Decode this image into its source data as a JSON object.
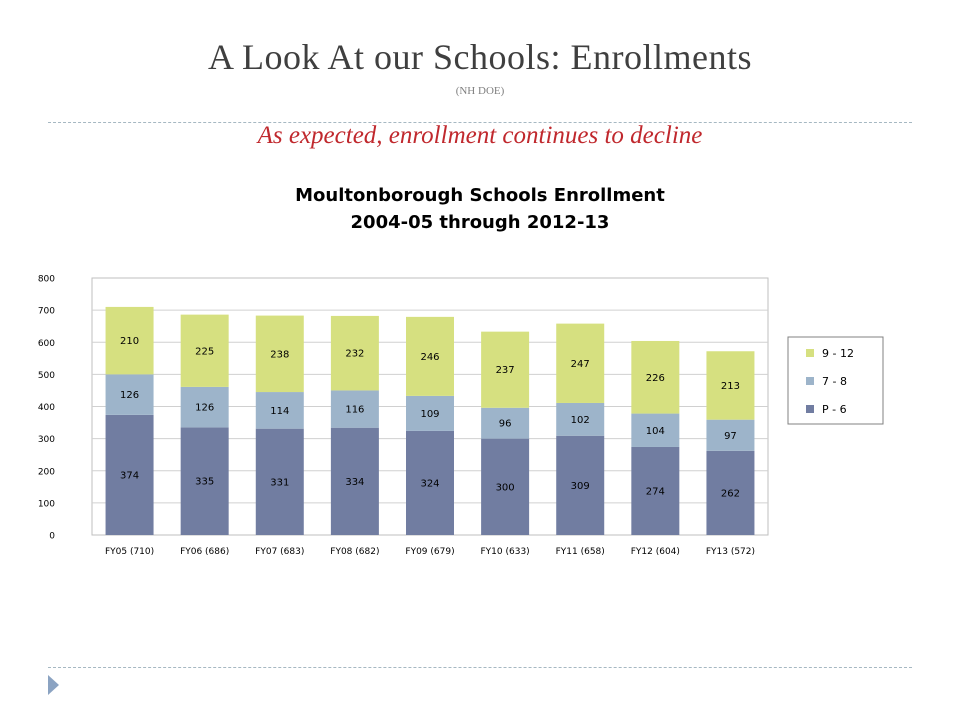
{
  "slide": {
    "title": "A Look At our Schools: Enrollments",
    "source": "(NH DOE)",
    "subtitle": "As expected, enrollment continues to decline"
  },
  "colors": {
    "title": "#3f3f3f",
    "subtitle": "#c0282d",
    "rule": "#a6b8c2",
    "nav_marker": "#8ba3c2"
  },
  "icons": {
    "nav_marker": "triangle-right-icon"
  },
  "chart_data": {
    "type": "bar",
    "stacked": true,
    "title": [
      "Moultonborough Schools Enrollment",
      "2004-05 through 2012-13"
    ],
    "categories": [
      "FY05 (710)",
      "FY06 (686)",
      "FY07 (683)",
      "FY08 (682)",
      "FY09 (679)",
      "FY10 (633)",
      "FY11 (658)",
      "FY12 (604)",
      "FY13 (572)"
    ],
    "series": [
      {
        "name": "P - 6",
        "color": "#717da1",
        "values": [
          374,
          335,
          331,
          334,
          324,
          300,
          309,
          274,
          262
        ]
      },
      {
        "name": "7 - 8",
        "color": "#9db4ca",
        "values": [
          126,
          126,
          114,
          116,
          109,
          96,
          102,
          104,
          97
        ]
      },
      {
        "name": "9 - 12",
        "color": "#d6e080",
        "values": [
          210,
          225,
          238,
          232,
          246,
          237,
          247,
          226,
          213
        ]
      }
    ],
    "legend_order": [
      "9 - 12",
      "7 - 8",
      "P - 6"
    ],
    "ylim": [
      0,
      800
    ],
    "yticks": [
      0,
      100,
      200,
      300,
      400,
      500,
      600,
      700,
      800
    ],
    "grid": true,
    "legend": "right"
  }
}
